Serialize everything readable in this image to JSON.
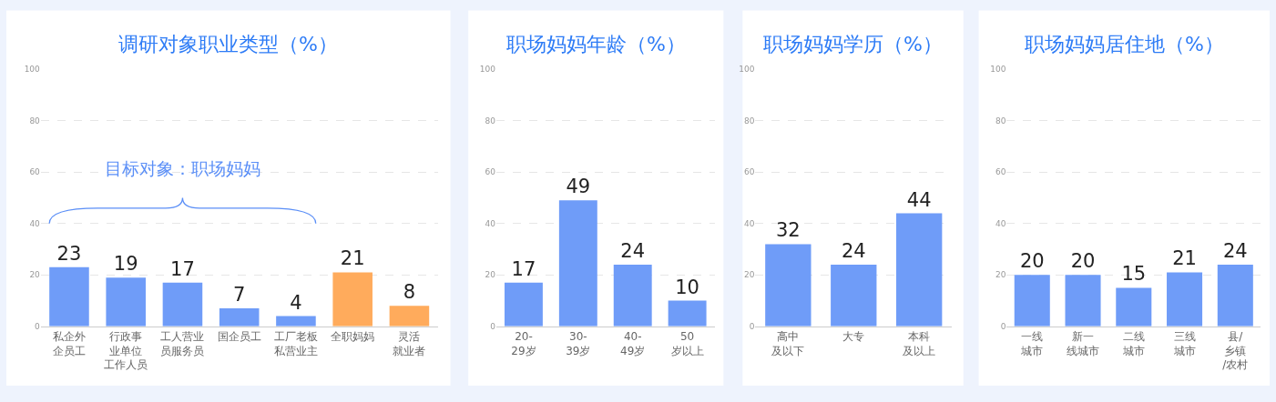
{
  "chart_data": [
    {
      "type": "bar",
      "title": "调研对象职业类型（%）",
      "categories": [
        "私企外企员工",
        "行政事业单位工作人员",
        "工人营业员服务员",
        "国企员工",
        "工厂老板私营业主",
        "全职妈妈",
        "灵活就业者"
      ],
      "values": [
        23,
        19,
        17,
        7,
        4,
        21,
        8
      ],
      "colors": [
        "#6f9cf8",
        "#6f9cf8",
        "#6f9cf8",
        "#6f9cf8",
        "#6f9cf8",
        "#ffab5c",
        "#ffab5c"
      ],
      "ylim": [
        0,
        100
      ],
      "yticks": [
        0,
        20,
        40,
        60,
        80,
        100
      ],
      "grid": "y",
      "data_labels": true,
      "annotations": [
        "目标对象：职场妈妈"
      ]
    },
    {
      "type": "bar",
      "title": "职场妈妈年龄（%）",
      "categories": [
        "20-29岁",
        "30-39岁",
        "40-49岁",
        "50岁以上"
      ],
      "values": [
        17,
        49,
        24,
        10
      ],
      "colors": [
        "#6f9cf8",
        "#6f9cf8",
        "#6f9cf8",
        "#6f9cf8"
      ],
      "ylim": [
        0,
        100
      ],
      "yticks": [
        0,
        20,
        40,
        60,
        80,
        100
      ],
      "grid": "y",
      "data_labels": true
    },
    {
      "type": "bar",
      "title": "职场妈妈学历（%）",
      "categories": [
        "高中及以下",
        "大专",
        "本科及以上"
      ],
      "values": [
        32,
        24,
        44
      ],
      "colors": [
        "#6f9cf8",
        "#6f9cf8",
        "#6f9cf8"
      ],
      "ylim": [
        0,
        100
      ],
      "yticks": [
        0,
        20,
        40,
        60,
        80,
        100
      ],
      "grid": "y",
      "data_labels": true
    },
    {
      "type": "bar",
      "title": "职场妈妈居住地（%）",
      "categories": [
        "一线城市",
        "新一线城市",
        "二线城市",
        "三线城市",
        "县/乡镇/农村"
      ],
      "values": [
        20,
        20,
        15,
        21,
        24
      ],
      "colors": [
        "#6f9cf8",
        "#6f9cf8",
        "#6f9cf8",
        "#6f9cf8",
        "#6f9cf8"
      ],
      "ylim": [
        0,
        100
      ],
      "yticks": [
        0,
        20,
        40,
        60,
        80,
        100
      ],
      "grid": "y",
      "data_labels": true
    }
  ]
}
